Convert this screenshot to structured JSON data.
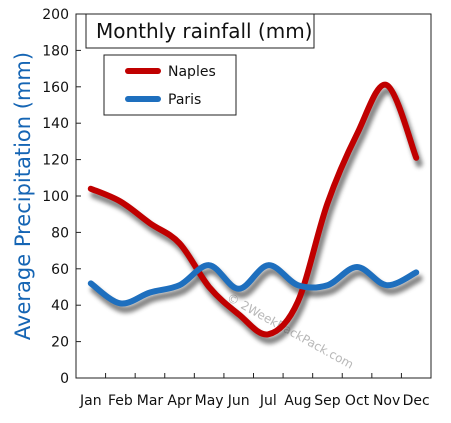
{
  "chart_data": {
    "type": "line",
    "title": "Monthly rainfall (mm)",
    "ylabel": "Average Precipitation (mm)",
    "xlabel": "",
    "categories": [
      "Jan",
      "Feb",
      "Mar",
      "Apr",
      "May",
      "Jun",
      "Jul",
      "Aug",
      "Sep",
      "Oct",
      "Nov",
      "Dec"
    ],
    "ylim": [
      0,
      200
    ],
    "yticks": [
      0,
      20,
      40,
      60,
      80,
      100,
      120,
      140,
      160,
      180,
      200
    ],
    "grid": false,
    "legend": "top-left",
    "series": [
      {
        "name": "Naples",
        "color": "#c00000",
        "values": [
          104,
          97,
          85,
          74,
          50,
          35,
          24,
          42,
          96,
          134,
          161,
          121
        ]
      },
      {
        "name": "Paris",
        "color": "#1e6fbe",
        "values": [
          52,
          41,
          47,
          51,
          62,
          49,
          62,
          51,
          51,
          61,
          51,
          58
        ]
      }
    ],
    "watermark": "© 2WeekBackPack.com"
  }
}
